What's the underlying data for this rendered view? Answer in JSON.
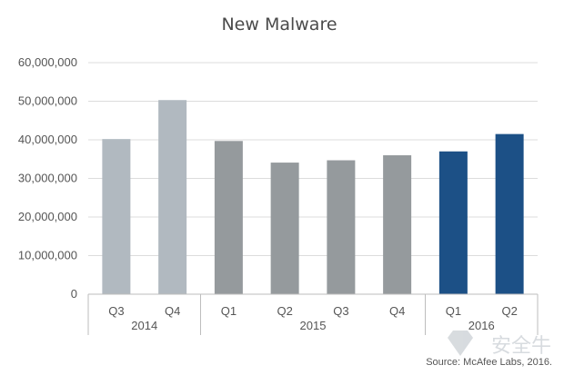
{
  "colors": {
    "color_2014": "#b1b9c0",
    "color_2015": "#959a9d",
    "color_2016": "#1c5086",
    "grid": "#dcdcdc",
    "text": "#555555"
  },
  "chart_data": {
    "type": "bar",
    "title": "New Malware",
    "xlabel": "",
    "ylabel": "",
    "ylim": [
      0,
      60000000
    ],
    "yticks": [
      "0",
      "10,000,000",
      "20,000,000",
      "30,000,000",
      "40,000,000",
      "50,000,000",
      "60,000,000"
    ],
    "ytick_values": [
      0,
      10000000,
      20000000,
      30000000,
      40000000,
      50000000,
      60000000
    ],
    "categories": [
      "Q3",
      "Q4",
      "Q1",
      "Q2",
      "Q3",
      "Q4",
      "Q1",
      "Q2"
    ],
    "years": [
      "2014",
      "2014",
      "2015",
      "2015",
      "2015",
      "2015",
      "2016",
      "2016"
    ],
    "year_groups": [
      {
        "label": "2014",
        "count": 2
      },
      {
        "label": "2015",
        "count": 4
      },
      {
        "label": "2016",
        "count": 2
      }
    ],
    "values": [
      40200000,
      50300000,
      39700000,
      34100000,
      34700000,
      36000000,
      37000000,
      41500000
    ],
    "grid": true,
    "legend": "none",
    "source": "Source: McAfee Labs, 2016."
  },
  "watermark": {
    "icon": "shield-icon",
    "text": "安全牛"
  }
}
